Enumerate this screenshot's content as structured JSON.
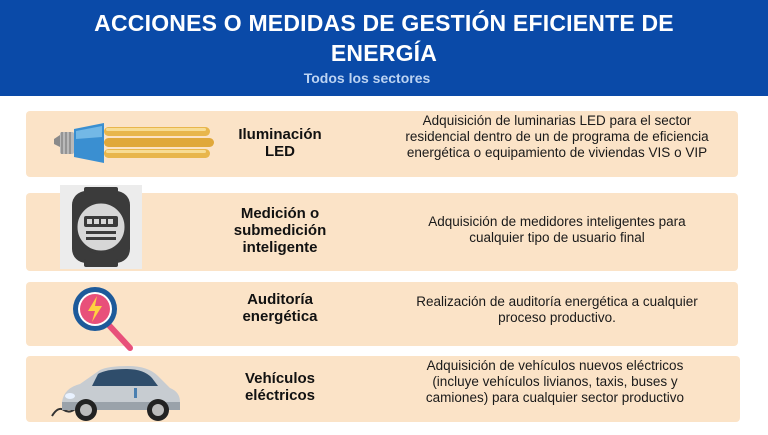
{
  "header": {
    "title_line1": "ACCIONES O MEDIDAS DE GESTIÓN EFICIENTE DE",
    "title_line2": "ENERGÍA",
    "subtitle": "Todos los sectores"
  },
  "measures": [
    {
      "title_line1": "Iluminación",
      "title_line2": "LED",
      "desc_line1": "Adquisición de luminarias LED para el sector",
      "desc_line2": "residencial dentro de un de programa de eficiencia",
      "desc_line3": "energética o equipamiento de viviendas VIS o VIP",
      "icon": "led-bulb-icon"
    },
    {
      "title_line1": "Medición o",
      "title_line2": "submedición",
      "title_line3": "inteligente",
      "desc_line1": "Adquisición de medidores inteligentes para",
      "desc_line2": "cualquier tipo de usuario final",
      "icon": "smart-meter-icon"
    },
    {
      "title_line1": "Auditoría",
      "title_line2": "energética",
      "desc_line1": "Realización de auditoría energética a cualquier",
      "desc_line2": "proceso productivo.",
      "icon": "energy-audit-icon"
    },
    {
      "title_line1": "Vehículos",
      "title_line2": "eléctricos",
      "desc_line1": "Adquisición de vehículos nuevos eléctricos",
      "desc_line2": "(incluye vehículos livianos, taxis, buses y",
      "desc_line3": "camiones) para cualquier sector productivo",
      "icon": "electric-car-icon"
    }
  ],
  "colors": {
    "header_bg": "#0a4aa8",
    "row_bg": "#fbe3c7"
  }
}
